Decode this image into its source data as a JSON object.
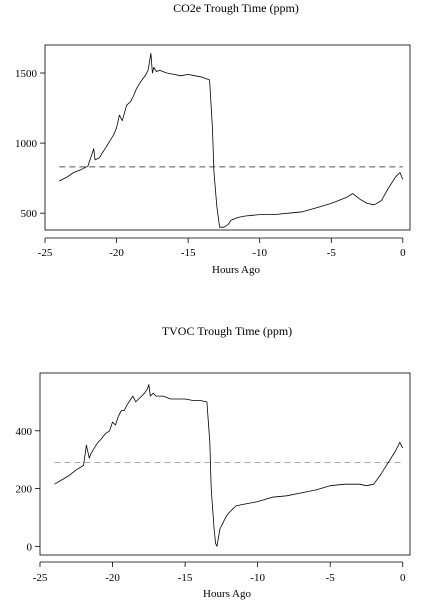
{
  "chart_data": [
    {
      "type": "line",
      "title": "CO2e Trough Time (ppm)",
      "xlabel": "Hours Ago",
      "ylabel": "",
      "xlim": [
        -25,
        0.5
      ],
      "ylim": [
        380,
        1700
      ],
      "xticks": [
        -25,
        -20,
        -15,
        -10,
        -5,
        0
      ],
      "xtick_labels": [
        "-25",
        "-20",
        "-15",
        "-10",
        "-5",
        "0"
      ],
      "yticks": [
        500,
        1000,
        1500
      ],
      "ytick_labels": [
        "500",
        "1000",
        "1500"
      ],
      "grid": false,
      "reference_line": {
        "y": 830,
        "style": "dashed",
        "color": "#555555"
      },
      "series": [
        {
          "color": "#000000",
          "x": [
            -24,
            -23.5,
            -23,
            -22.5,
            -22,
            -21.6,
            -21.5,
            -21.2,
            -21,
            -20.8,
            -20.5,
            -20.2,
            -20,
            -19.8,
            -19.6,
            -19.3,
            -19,
            -18.8,
            -18.6,
            -18.3,
            -18,
            -17.8,
            -17.6,
            -17.5,
            -17.4,
            -17.2,
            -17,
            -16.5,
            -16,
            -15.5,
            -15,
            -14.5,
            -14,
            -13.5,
            -13.3,
            -13.2,
            -13,
            -12.8,
            -12.5,
            -12.2,
            -12.0,
            -11.5,
            -11,
            -10.5,
            -10,
            -9,
            -8,
            -7,
            -6,
            -5,
            -4,
            -3.5,
            -3,
            -2.5,
            -2,
            -1.5,
            -1,
            -0.5,
            -0.2,
            0
          ],
          "y": [
            730,
            755,
            790,
            810,
            835,
            960,
            880,
            895,
            930,
            960,
            1010,
            1060,
            1110,
            1200,
            1160,
            1270,
            1300,
            1340,
            1390,
            1440,
            1480,
            1520,
            1640,
            1500,
            1540,
            1510,
            1520,
            1500,
            1490,
            1480,
            1490,
            1480,
            1470,
            1450,
            1100,
            800,
            550,
            400,
            400,
            420,
            450,
            470,
            480,
            485,
            490,
            490,
            500,
            510,
            540,
            570,
            610,
            640,
            600,
            570,
            560,
            590,
            680,
            760,
            790,
            740
          ]
        }
      ]
    },
    {
      "type": "line",
      "title": "TVOC Trough Time (ppm)",
      "xlabel": "Hours Ago",
      "ylabel": "",
      "xlim": [
        -25,
        0.5
      ],
      "ylim": [
        -30,
        600
      ],
      "xticks": [
        -25,
        -20,
        -15,
        -10,
        -5,
        0
      ],
      "xtick_labels": [
        "-25",
        "-20",
        "-15",
        "-10",
        "-5",
        "0"
      ],
      "yticks": [
        0,
        200,
        400
      ],
      "ytick_labels": [
        "0",
        "200",
        "400"
      ],
      "grid": false,
      "reference_line": {
        "y": 290,
        "style": "dashed",
        "color": "#aaaaaa"
      },
      "series": [
        {
          "color": "#000000",
          "x": [
            -24,
            -23.5,
            -23,
            -22.5,
            -22,
            -21.8,
            -21.6,
            -21.5,
            -21.2,
            -21,
            -20.8,
            -20.5,
            -20.2,
            -20,
            -19.8,
            -19.6,
            -19.4,
            -19.2,
            -19,
            -18.8,
            -18.6,
            -18.4,
            -18.2,
            -18,
            -17.8,
            -17.6,
            -17.5,
            -17.4,
            -17.2,
            -17,
            -16.5,
            -16,
            -15.5,
            -15,
            -14.5,
            -14,
            -13.5,
            -13.3,
            -13.2,
            -13,
            -12.9,
            -12.8,
            -12.6,
            -12.4,
            -12.2,
            -12,
            -11.5,
            -11,
            -10.5,
            -10,
            -9,
            -8,
            -7,
            -6,
            -5,
            -4,
            -3,
            -2.5,
            -2,
            -1.5,
            -1,
            -0.5,
            -0.2,
            0
          ],
          "y": [
            215,
            230,
            245,
            265,
            280,
            350,
            305,
            320,
            345,
            360,
            370,
            390,
            400,
            430,
            420,
            450,
            470,
            470,
            490,
            505,
            520,
            500,
            510,
            520,
            530,
            545,
            560,
            520,
            530,
            520,
            520,
            510,
            510,
            510,
            505,
            505,
            500,
            360,
            200,
            60,
            10,
            0,
            60,
            80,
            100,
            115,
            140,
            145,
            150,
            155,
            170,
            175,
            185,
            195,
            210,
            215,
            215,
            210,
            215,
            250,
            290,
            330,
            360,
            340
          ]
        }
      ]
    }
  ]
}
